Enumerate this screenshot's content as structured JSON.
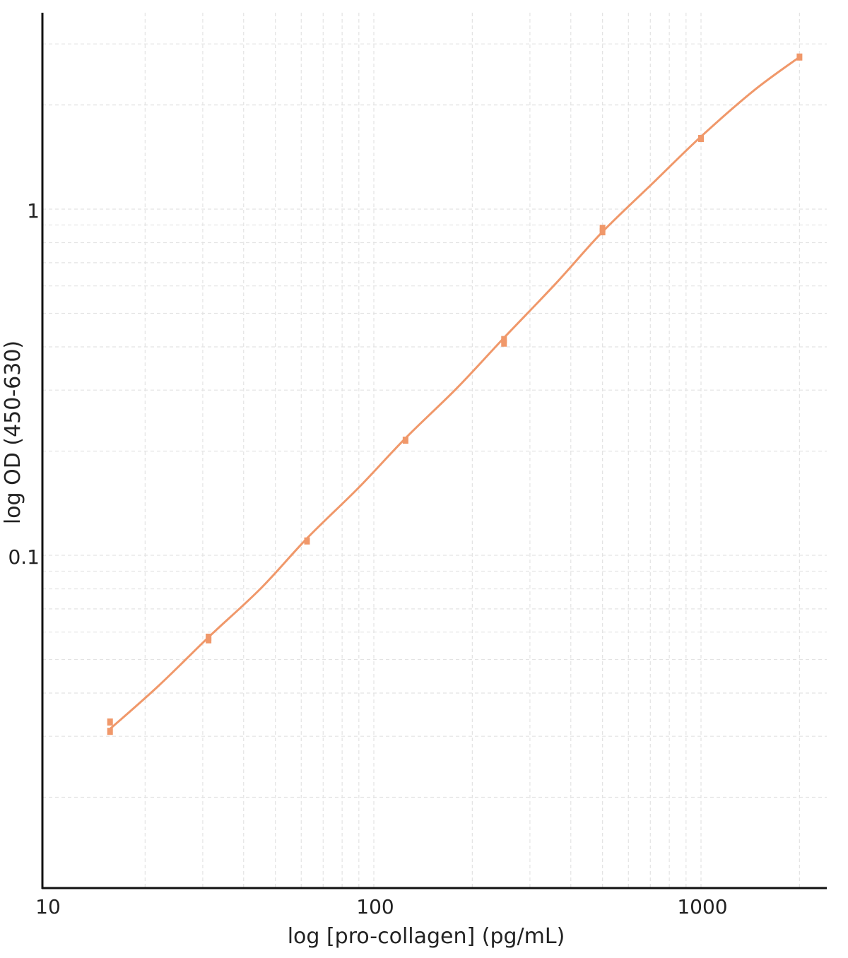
{
  "chart_data": {
    "type": "scatter",
    "xlabel": "log [pro-collagen] (pg/mL)",
    "ylabel": "log OD (450-630)",
    "x_scale": "log",
    "y_scale": "log",
    "xlim": [
      10,
      2300
    ],
    "ylim": [
      0.017,
      2.3
    ],
    "x_tick_labels": [
      {
        "value": 10,
        "label": "10"
      },
      {
        "value": 100,
        "label": "100"
      },
      {
        "value": 1000,
        "label": "1000"
      }
    ],
    "y_tick_labels": [
      {
        "value": 1,
        "label": "1"
      },
      {
        "value": 0.1,
        "label": "0.1"
      }
    ],
    "grid": true,
    "colors": {
      "series": "#f0986a",
      "axis": "#111111",
      "grid": "#e3e3e3"
    },
    "series": [
      {
        "values": [
          {
            "x": 15.625,
            "y": 0.033
          },
          {
            "x": 15.625,
            "y": 0.031
          },
          {
            "x": 31.25,
            "y": 0.058
          },
          {
            "x": 31.25,
            "y": 0.057
          },
          {
            "x": 62.5,
            "y": 0.11
          },
          {
            "x": 125,
            "y": 0.215
          },
          {
            "x": 250,
            "y": 0.42
          },
          {
            "x": 250,
            "y": 0.41
          },
          {
            "x": 500,
            "y": 0.88
          },
          {
            "x": 500,
            "y": 0.86
          },
          {
            "x": 1000,
            "y": 1.6
          },
          {
            "x": 2000,
            "y": 2.75
          }
        ]
      }
    ],
    "fit_curve": [
      {
        "x": 15.625,
        "y": 0.0315
      },
      {
        "x": 22,
        "y": 0.042
      },
      {
        "x": 31.25,
        "y": 0.058
      },
      {
        "x": 45,
        "y": 0.08
      },
      {
        "x": 62.5,
        "y": 0.112
      },
      {
        "x": 90,
        "y": 0.157
      },
      {
        "x": 125,
        "y": 0.218
      },
      {
        "x": 180,
        "y": 0.305
      },
      {
        "x": 250,
        "y": 0.425
      },
      {
        "x": 360,
        "y": 0.61
      },
      {
        "x": 500,
        "y": 0.86
      },
      {
        "x": 720,
        "y": 1.2
      },
      {
        "x": 1000,
        "y": 1.62
      },
      {
        "x": 1450,
        "y": 2.2
      },
      {
        "x": 2000,
        "y": 2.75
      }
    ]
  }
}
